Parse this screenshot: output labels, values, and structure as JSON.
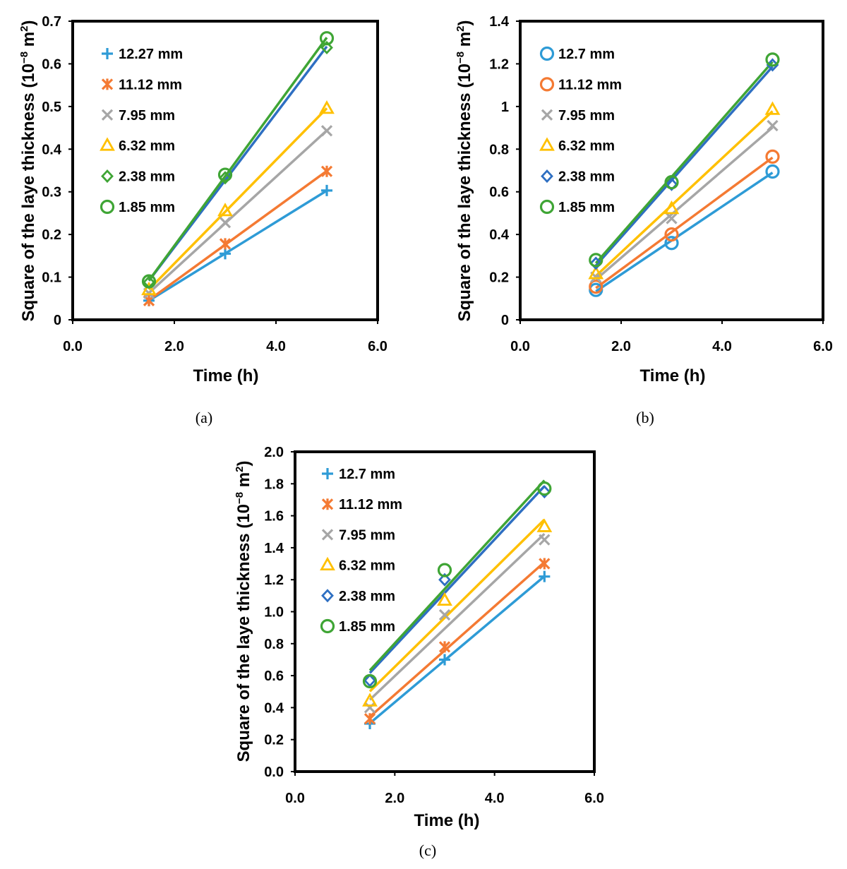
{
  "chart_data": [
    {
      "type": "scatter",
      "panel_label": "(a)",
      "xlabel": "Time (h)",
      "ylabel_main": "Square of the laye thickness (10",
      "ylabel_exp": "−8",
      "ylabel_mid": " m",
      "ylabel_sq": "2",
      "ylabel_end": ")",
      "xlim": [
        0,
        6
      ],
      "ylim": [
        0,
        0.7
      ],
      "xticks": [
        0,
        2,
        4,
        6
      ],
      "xtick_labels": [
        "0.0",
        "2.0",
        "4.0",
        "6.0"
      ],
      "yticks": [
        0,
        0.1,
        0.2,
        0.3,
        0.4,
        0.5,
        0.6,
        0.7
      ],
      "ytick_labels": [
        "0",
        "0.1",
        "0.2",
        "0.3",
        "0.4",
        "0.5",
        "0.6",
        "0.7"
      ],
      "legend_position": "top-left",
      "x": [
        1.5,
        3,
        5
      ],
      "series": [
        {
          "name": "12.27 mm",
          "marker": "plus",
          "color": "#2E9BD6",
          "values": [
            0.045,
            0.155,
            0.303
          ]
        },
        {
          "name": "11.12 mm",
          "marker": "star",
          "color": "#F47A33",
          "values": [
            0.045,
            0.178,
            0.348
          ]
        },
        {
          "name": "7.95 mm",
          "marker": "x",
          "color": "#A6A6A6",
          "values": [
            0.062,
            0.228,
            0.443
          ]
        },
        {
          "name": "6.32 mm",
          "marker": "triangle",
          "color": "#FFC000",
          "values": [
            0.07,
            0.255,
            0.495
          ]
        },
        {
          "name": "2.38 mm",
          "marker": "diamond",
          "color": "#3FA535",
          "line_color": "#2E6FC2",
          "values": [
            0.088,
            0.333,
            0.638
          ]
        },
        {
          "name": "1.85 mm",
          "marker": "circle",
          "color": "#3FA535",
          "values": [
            0.09,
            0.34,
            0.66
          ]
        }
      ]
    },
    {
      "type": "scatter",
      "panel_label": "(b)",
      "xlabel": "Time (h)",
      "ylabel_main": "Square of the laye thickness (10",
      "ylabel_exp": "−8",
      "ylabel_mid": " m",
      "ylabel_sq": "2",
      "ylabel_end": ")",
      "xlim": [
        0,
        6
      ],
      "ylim": [
        0,
        1.4
      ],
      "xticks": [
        0,
        2,
        4,
        6
      ],
      "xtick_labels": [
        "0.0",
        "2.0",
        "4.0",
        "6.0"
      ],
      "yticks": [
        0,
        0.2,
        0.4,
        0.6,
        0.8,
        1,
        1.2,
        1.4
      ],
      "ytick_labels": [
        "0",
        "0.2",
        "0.4",
        "0.6",
        "0.8",
        "1",
        "1.2",
        "1.4"
      ],
      "legend_position": "top-left",
      "x": [
        1.5,
        3,
        5
      ],
      "series": [
        {
          "name": "12.7 mm",
          "marker": "circle",
          "color": "#2E9BD6",
          "values": [
            0.14,
            0.36,
            0.695
          ]
        },
        {
          "name": "11.12 mm",
          "marker": "circle",
          "color": "#F47A33",
          "values": [
            0.155,
            0.4,
            0.765
          ]
        },
        {
          "name": "7.95 mm",
          "marker": "x",
          "color": "#A6A6A6",
          "values": [
            0.2,
            0.475,
            0.91
          ]
        },
        {
          "name": "6.32 mm",
          "marker": "triangle",
          "color": "#FFC000",
          "values": [
            0.215,
            0.52,
            0.985
          ]
        },
        {
          "name": "2.38 mm",
          "marker": "diamond",
          "color": "#2E6FC2",
          "values": [
            0.265,
            0.635,
            1.195
          ]
        },
        {
          "name": "1.85 mm",
          "marker": "circle",
          "color": "#3FA535",
          "values": [
            0.28,
            0.645,
            1.22
          ]
        }
      ]
    },
    {
      "type": "scatter",
      "panel_label": "(c)",
      "xlabel": "Time (h)",
      "ylabel_main": "Square of the laye thickness (10",
      "ylabel_exp": "−8",
      "ylabel_mid": " m",
      "ylabel_sq": "2",
      "ylabel_end": ")",
      "xlim": [
        0,
        6
      ],
      "ylim": [
        0,
        2
      ],
      "xticks": [
        0,
        2,
        4,
        6
      ],
      "xtick_labels": [
        "0.0",
        "2.0",
        "4.0",
        "6.0"
      ],
      "yticks": [
        0,
        0.2,
        0.4,
        0.6,
        0.8,
        1,
        1.2,
        1.4,
        1.6,
        1.8,
        2
      ],
      "ytick_labels": [
        "0.0",
        "0.2",
        "0.4",
        "0.6",
        "0.8",
        "1.0",
        "1.2",
        "1.4",
        "1.6",
        "1.8",
        "2.0"
      ],
      "legend_position": "top-left",
      "x": [
        1.5,
        3,
        5
      ],
      "series": [
        {
          "name": "12.7 mm",
          "marker": "plus",
          "color": "#2E9BD6",
          "values": [
            0.3,
            0.7,
            1.22
          ]
        },
        {
          "name": "11.12 mm",
          "marker": "star",
          "color": "#F47A33",
          "values": [
            0.33,
            0.78,
            1.3
          ]
        },
        {
          "name": "7.95 mm",
          "marker": "x",
          "color": "#A6A6A6",
          "values": [
            0.4,
            0.98,
            1.45
          ]
        },
        {
          "name": "6.32 mm",
          "marker": "triangle",
          "color": "#FFC000",
          "values": [
            0.44,
            1.07,
            1.53
          ]
        },
        {
          "name": "2.38 mm",
          "marker": "diamond",
          "color": "#2E6FC2",
          "values": [
            0.57,
            1.2,
            1.75
          ]
        },
        {
          "name": "1.85 mm",
          "marker": "circle",
          "color": "#3FA535",
          "values": [
            0.565,
            1.26,
            1.77
          ]
        }
      ]
    }
  ]
}
